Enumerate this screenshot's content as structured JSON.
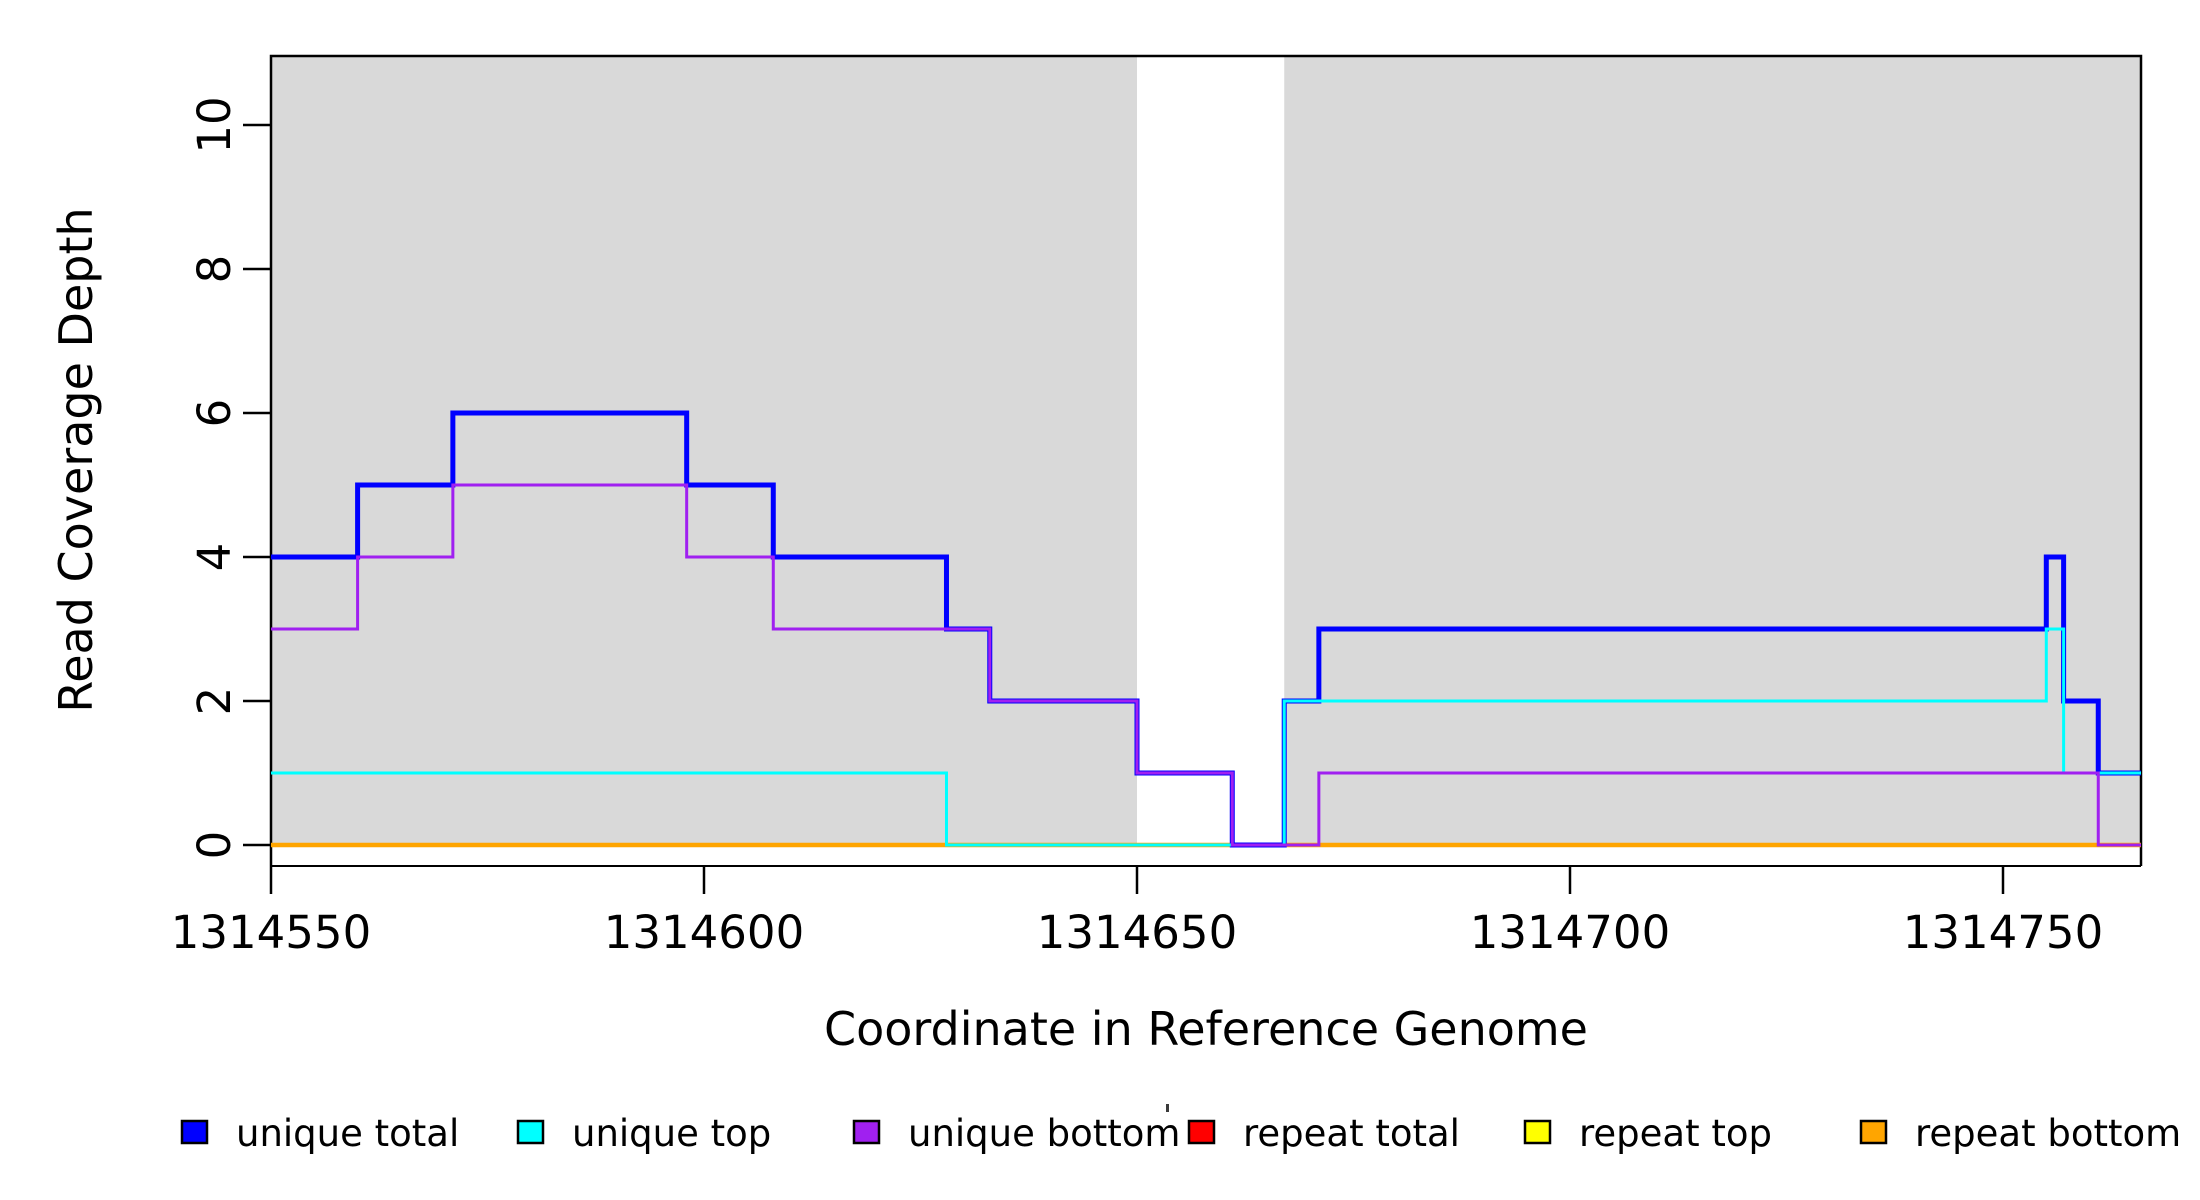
{
  "figure": {
    "background": "#FFFFFF"
  },
  "axes": {
    "x_title": "Coordinate in Reference Genome",
    "y_title": "Read Coverage Depth"
  },
  "chart_data": {
    "type": "line",
    "subtype": "step-after",
    "title": "",
    "xlabel": "Coordinate in Reference Genome",
    "ylabel": "Read Coverage Depth",
    "x_range": [
      1314550,
      1314766
    ],
    "y_range": [
      0,
      11
    ],
    "x_ticks": [
      "1314550",
      "1314600",
      "1314650",
      "1314700",
      "1314750"
    ],
    "x_tick_values": [
      1314550,
      1314600,
      1314650,
      1314700,
      1314750
    ],
    "y_ticks": [
      "0",
      "2",
      "4",
      "6",
      "8",
      "10"
    ],
    "y_tick_values": [
      0,
      2,
      4,
      6,
      8,
      10
    ],
    "grid": false,
    "legend_position": "bottom",
    "shaded_regions": {
      "color": "#D9D9D9",
      "ranges": [
        [
          1314550,
          1314650
        ],
        [
          1314667,
          1314766
        ]
      ]
    },
    "series": [
      {
        "name": "repeat total",
        "color": "#FF0000",
        "width": 3.5,
        "points": [
          [
            1314550,
            0
          ],
          [
            1314766,
            0
          ]
        ]
      },
      {
        "name": "repeat top",
        "color": "#FFFF00",
        "width": 3.5,
        "points": [
          [
            1314550,
            0
          ],
          [
            1314766,
            0
          ]
        ]
      },
      {
        "name": "repeat bottom",
        "color": "#FFA500",
        "width": 4.5,
        "points": [
          [
            1314550,
            0
          ],
          [
            1314766,
            0
          ]
        ]
      },
      {
        "name": "unique total",
        "color": "#0000FF",
        "width": 5,
        "points": [
          [
            1314550,
            4
          ],
          [
            1314560,
            5
          ],
          [
            1314571,
            6
          ],
          [
            1314598,
            5
          ],
          [
            1314608,
            4
          ],
          [
            1314628,
            3
          ],
          [
            1314633,
            2
          ],
          [
            1314650,
            1
          ],
          [
            1314661,
            0
          ],
          [
            1314667,
            2
          ],
          [
            1314671,
            3
          ],
          [
            1314755,
            4
          ],
          [
            1314757,
            2
          ],
          [
            1314761,
            1
          ],
          [
            1314766,
            1
          ]
        ]
      },
      {
        "name": "unique top",
        "color": "#00FFFF",
        "width": 3,
        "points": [
          [
            1314550,
            1
          ],
          [
            1314628,
            0
          ],
          [
            1314667,
            2
          ],
          [
            1314755,
            3
          ],
          [
            1314757,
            1
          ],
          [
            1314766,
            1
          ]
        ]
      },
      {
        "name": "unique bottom",
        "color": "#A020F0",
        "width": 3,
        "points": [
          [
            1314550,
            3
          ],
          [
            1314560,
            4
          ],
          [
            1314571,
            5
          ],
          [
            1314598,
            4
          ],
          [
            1314608,
            3
          ],
          [
            1314633,
            2
          ],
          [
            1314650,
            1
          ],
          [
            1314661,
            0
          ],
          [
            1314671,
            1
          ],
          [
            1314761,
            0
          ],
          [
            1314766,
            0
          ]
        ]
      }
    ]
  },
  "legend": {
    "items": [
      {
        "label": "unique total",
        "color": "#0000FF"
      },
      {
        "label": "unique top",
        "color": "#00FFFF"
      },
      {
        "label": "unique bottom",
        "color": "#A020F0"
      },
      {
        "label": "repeat total",
        "color": "#FF0000"
      },
      {
        "label": "repeat top",
        "color": "#FFFF00"
      },
      {
        "label": "repeat bottom",
        "color": "#FFA500"
      }
    ]
  }
}
